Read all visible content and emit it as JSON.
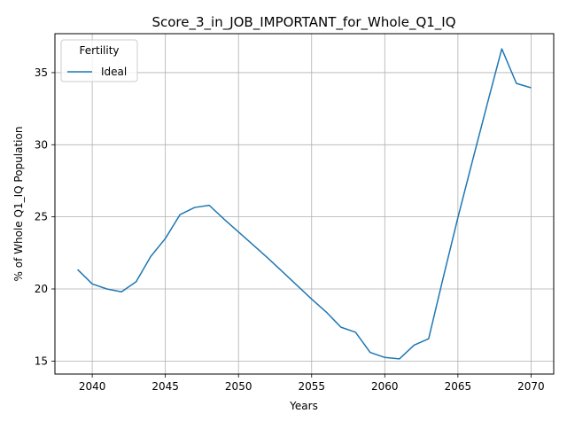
{
  "chart_data": {
    "type": "line",
    "title": "Score_3_in_JOB_IMPORTANT_for_Whole_Q1_IQ",
    "xlabel": "Years",
    "ylabel": "% of Whole Q1_IQ Population",
    "xlim": [
      2037.45,
      2071.55
    ],
    "ylim": [
      14.1,
      37.7
    ],
    "xticks": [
      2040,
      2045,
      2050,
      2055,
      2060,
      2065,
      2070
    ],
    "yticks": [
      15,
      20,
      25,
      30,
      35
    ],
    "grid": true,
    "legend": {
      "title": "Fertility",
      "placement": "top-left"
    },
    "x": [
      2039,
      2040,
      2041,
      2042,
      2043,
      2044,
      2045,
      2046,
      2047,
      2048,
      2049,
      2050,
      2051,
      2052,
      2053,
      2054,
      2055,
      2056,
      2057,
      2058,
      2059,
      2060,
      2061,
      2062,
      2063,
      2064,
      2065,
      2066,
      2067,
      2068,
      2069,
      2070
    ],
    "series": [
      {
        "name": "Ideal",
        "color": "#1f77b4",
        "values": [
          21.35,
          20.35,
          20.0,
          19.8,
          20.5,
          22.25,
          23.5,
          25.15,
          25.65,
          25.8,
          24.85,
          23.95,
          23.05,
          22.15,
          21.2,
          20.25,
          19.3,
          18.4,
          17.35,
          17.0,
          15.6,
          15.25,
          15.15,
          16.1,
          16.55,
          20.8,
          24.95,
          28.9,
          32.8,
          36.65,
          34.25,
          33.95
        ]
      }
    ]
  }
}
